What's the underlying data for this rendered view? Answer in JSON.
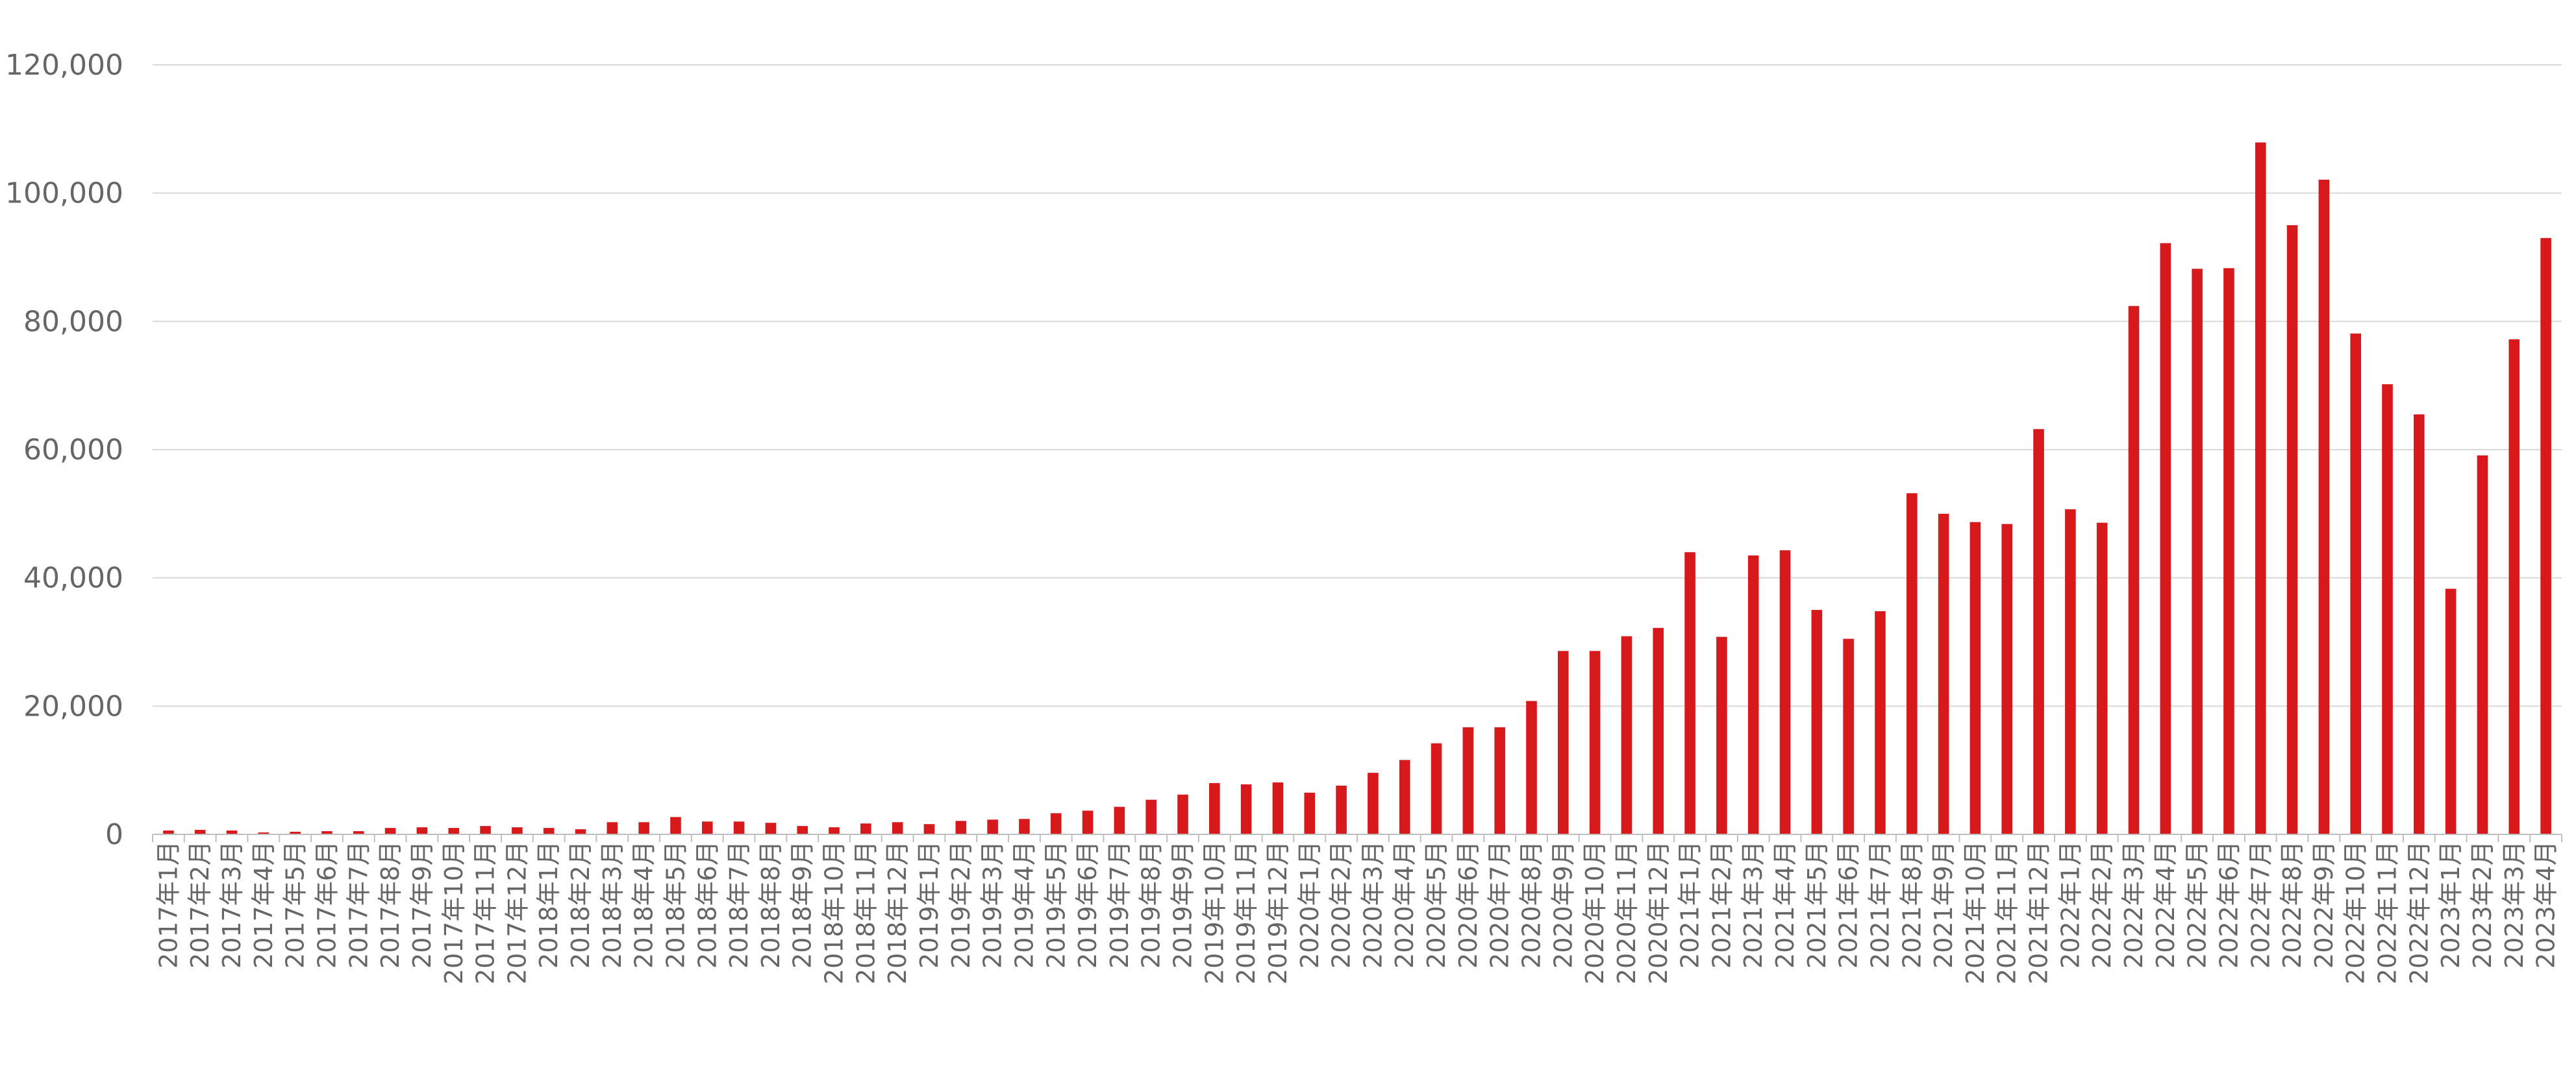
{
  "chart_data": {
    "type": "bar",
    "title": "",
    "xlabel": "",
    "ylabel": "",
    "ylim": [
      0,
      120000
    ],
    "yticks": [
      0,
      20000,
      40000,
      60000,
      80000,
      100000,
      120000
    ],
    "ytick_labels": [
      "0",
      "20,000",
      "40,000",
      "60,000",
      "80,000",
      "100,000",
      "120,000"
    ],
    "grid": true,
    "legend": "none",
    "bar_color": "#d7191c",
    "categories": [
      "2017年1月",
      "2017年2月",
      "2017年3月",
      "2017年4月",
      "2017年5月",
      "2017年6月",
      "2017年7月",
      "2017年8月",
      "2017年9月",
      "2017年10月",
      "2017年11月",
      "2017年12月",
      "2018年1月",
      "2018年2月",
      "2018年3月",
      "2018年4月",
      "2018年5月",
      "2018年6月",
      "2018年7月",
      "2018年8月",
      "2018年9月",
      "2018年10月",
      "2018年11月",
      "2018年12月",
      "2019年1月",
      "2019年2月",
      "2019年3月",
      "2019年4月",
      "2019年5月",
      "2019年6月",
      "2019年7月",
      "2019年8月",
      "2019年9月",
      "2019年10月",
      "2019年11月",
      "2019年12月",
      "2020年1月",
      "2020年2月",
      "2020年3月",
      "2020年4月",
      "2020年5月",
      "2020年6月",
      "2020年7月",
      "2020年8月",
      "2020年9月",
      "2020年10月",
      "2020年11月",
      "2020年12月",
      "2021年1月",
      "2021年2月",
      "2021年3月",
      "2021年4月",
      "2021年5月",
      "2021年6月",
      "2021年7月",
      "2021年8月",
      "2021年9月",
      "2021年10月",
      "2021年11月",
      "2021年12月",
      "2022年1月",
      "2022年2月",
      "2022年3月",
      "2022年4月",
      "2022年5月",
      "2022年6月",
      "2022年7月",
      "2022年8月",
      "2022年9月",
      "2022年10月",
      "2022年11月",
      "2022年12月",
      "2023年1月",
      "2023年2月",
      "2023年3月",
      "2023年4月"
    ],
    "values": [
      600,
      700,
      600,
      300,
      400,
      500,
      500,
      1000,
      1100,
      1000,
      1300,
      1100,
      1000,
      800,
      1900,
      1900,
      2700,
      2000,
      2000,
      1800,
      1300,
      1100,
      1700,
      1900,
      1600,
      2100,
      2300,
      2400,
      3300,
      3700,
      4300,
      5400,
      6200,
      8000,
      7800,
      8100,
      6500,
      7600,
      9600,
      11600,
      14200,
      16700,
      16700,
      20800,
      28600,
      28600,
      30900,
      32200,
      44000,
      30800,
      43500,
      44300,
      35000,
      30500,
      34800,
      53200,
      50000,
      48700,
      48400,
      63200,
      50700,
      48600,
      82400,
      92200,
      88200,
      88300,
      107900,
      95000,
      102100,
      78100,
      70200,
      65500,
      38300,
      59100,
      77200,
      93000
    ]
  }
}
